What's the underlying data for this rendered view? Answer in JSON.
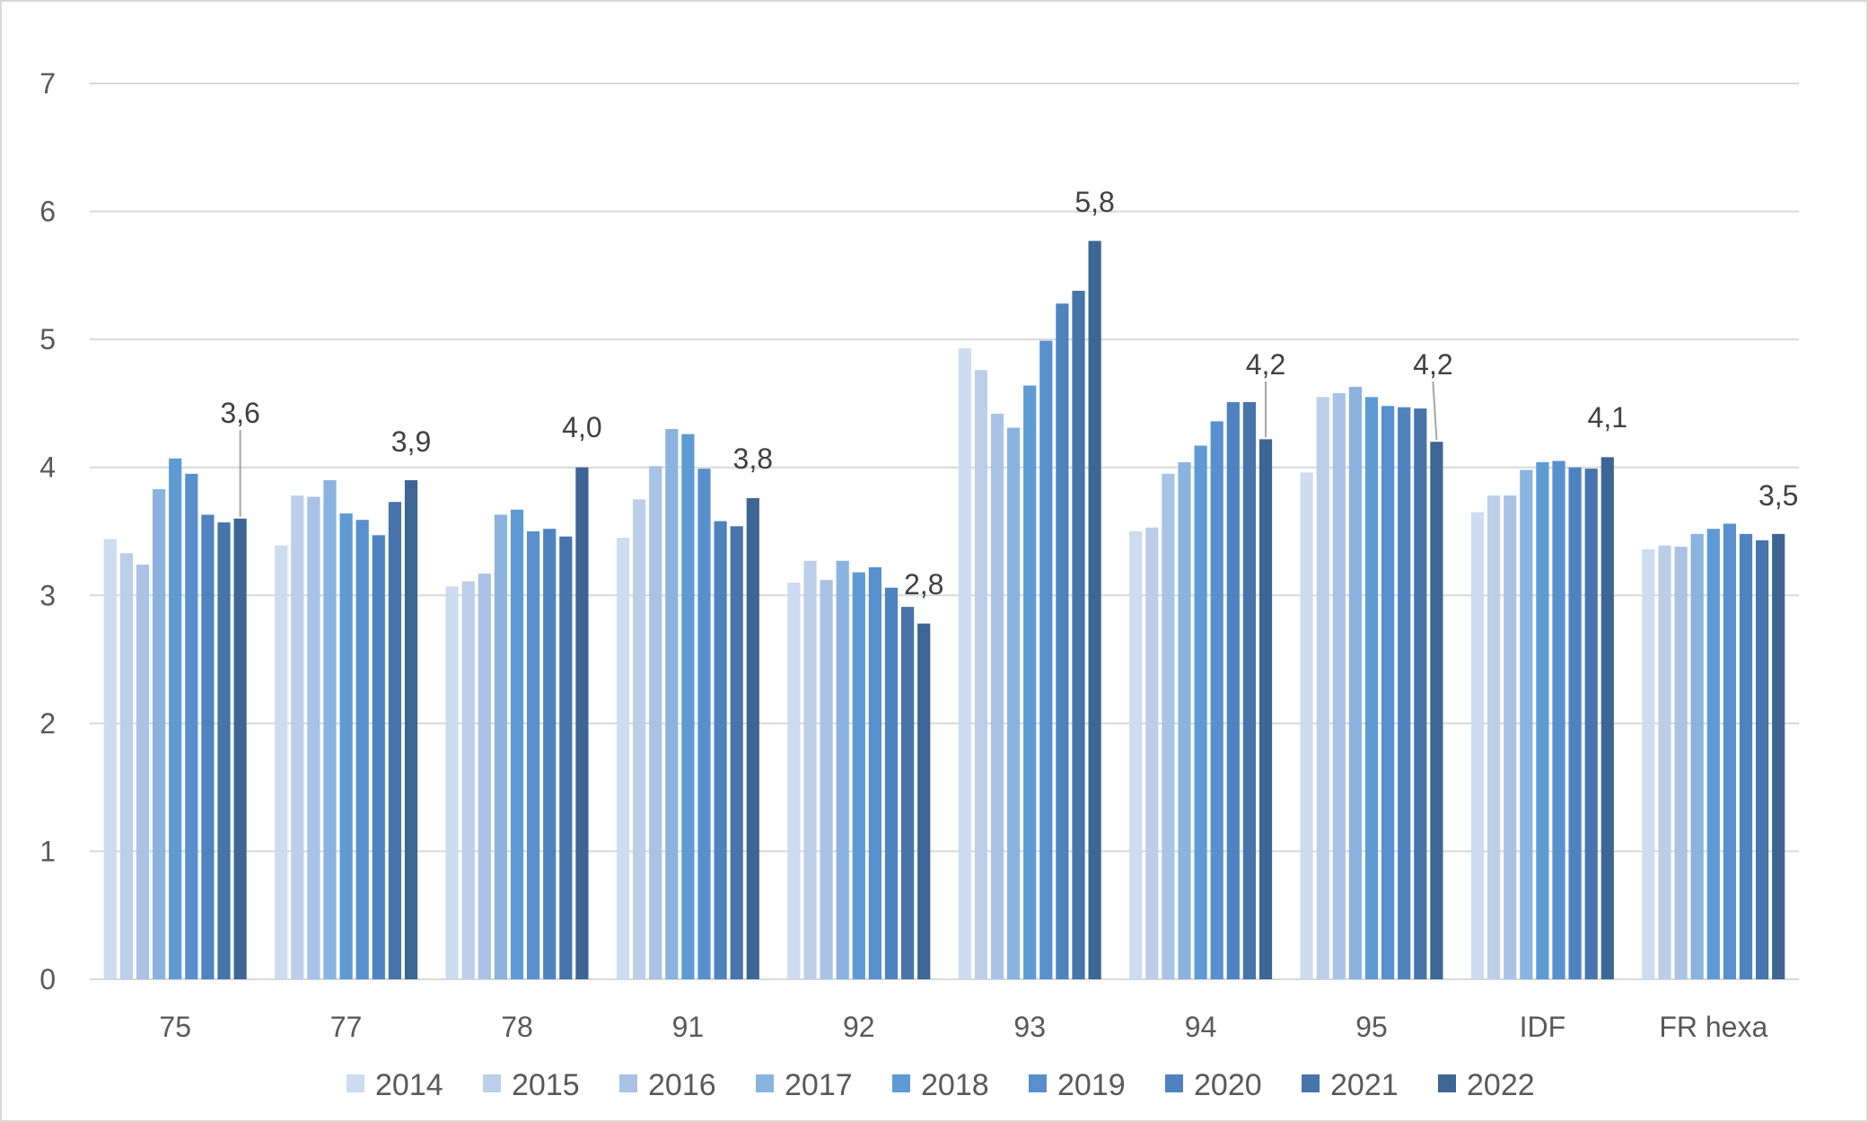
{
  "chart_data": {
    "type": "bar",
    "title": "",
    "xlabel": "",
    "ylabel": "",
    "ylim": [
      0,
      7
    ],
    "yticks": [
      "0",
      "1",
      "2",
      "3",
      "4",
      "5",
      "6",
      "7"
    ],
    "grid": true,
    "legend_position": "bottom",
    "categories": [
      "75",
      "77",
      "78",
      "91",
      "92",
      "93",
      "94",
      "95",
      "IDF",
      "FR hexa"
    ],
    "series": [
      {
        "name": "2014",
        "color": "#cddcf0",
        "values": [
          3.44,
          3.39,
          3.07,
          3.45,
          3.1,
          4.93,
          3.5,
          3.96,
          3.65,
          3.36
        ]
      },
      {
        "name": "2015",
        "color": "#bccfea",
        "values": [
          3.33,
          3.78,
          3.11,
          3.75,
          3.27,
          4.76,
          3.53,
          4.55,
          3.78,
          3.39
        ]
      },
      {
        "name": "2016",
        "color": "#a8c3e5",
        "values": [
          3.24,
          3.77,
          3.17,
          4.01,
          3.12,
          4.42,
          3.95,
          4.58,
          3.78,
          3.38
        ]
      },
      {
        "name": "2017",
        "color": "#8bb3e0",
        "values": [
          3.83,
          3.9,
          3.63,
          4.3,
          3.27,
          4.31,
          4.04,
          4.63,
          3.98,
          3.48
        ]
      },
      {
        "name": "2018",
        "color": "#5e9bd5",
        "values": [
          4.07,
          3.64,
          3.67,
          4.26,
          3.18,
          4.64,
          4.17,
          4.55,
          4.04,
          3.52
        ]
      },
      {
        "name": "2019",
        "color": "#5890cd",
        "values": [
          3.95,
          3.59,
          3.5,
          3.99,
          3.22,
          4.99,
          4.36,
          4.48,
          4.05,
          3.56
        ]
      },
      {
        "name": "2020",
        "color": "#4f83c0",
        "values": [
          3.63,
          3.47,
          3.52,
          3.58,
          3.06,
          5.28,
          4.51,
          4.47,
          4.0,
          3.48
        ]
      },
      {
        "name": "2021",
        "color": "#4674ab",
        "values": [
          3.57,
          3.73,
          3.46,
          3.54,
          2.91,
          5.38,
          4.51,
          4.46,
          3.99,
          3.43
        ]
      },
      {
        "name": "2022",
        "color": "#3d6695",
        "values": [
          3.6,
          3.9,
          4.0,
          3.76,
          2.78,
          5.77,
          4.22,
          4.2,
          4.08,
          3.48
        ]
      }
    ],
    "data_labels": [
      "3,6",
      "3,9",
      "4,0",
      "3,8",
      "2,8",
      "5,8",
      "4,2",
      "4,2",
      "4,1",
      "3,5"
    ]
  }
}
